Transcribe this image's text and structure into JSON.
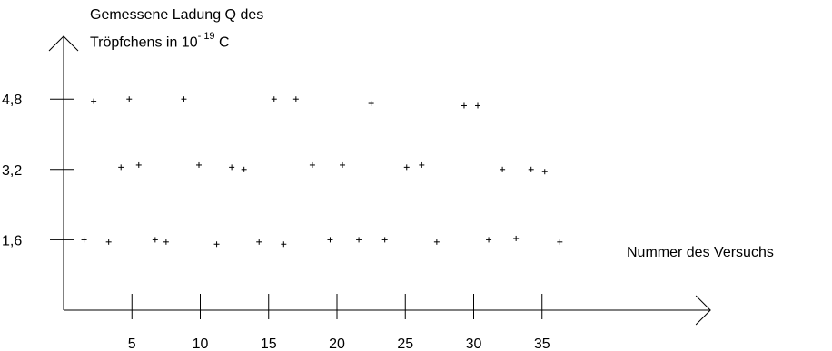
{
  "chart_data": {
    "type": "scatter",
    "title": "",
    "ylabel_line1": "Gemessene Ladung  Q  des",
    "ylabel_line2_prefix": "Tröpfchens  in  10",
    "ylabel_exponent": "- 19",
    "ylabel_unit": "C",
    "xlabel": "Nummer des Versuchs",
    "x_ticks": [
      5,
      10,
      15,
      20,
      25,
      30,
      35
    ],
    "x_tick_labels": [
      "5",
      "10",
      "15",
      "20",
      "25",
      "30",
      "35"
    ],
    "y_ticks": [
      1.6,
      3.2,
      4.8
    ],
    "y_tick_labels": [
      "1,6",
      "3,2",
      "4,8"
    ],
    "xlim": [
      0,
      43
    ],
    "ylim": [
      0,
      6.2
    ],
    "grid": false,
    "marker": "+",
    "series": [
      {
        "x": [
          1.5,
          2.2,
          3.3,
          4.2,
          4.8,
          5.5,
          6.7,
          7.5,
          8.8,
          9.9,
          11.2,
          12.3,
          13.2,
          14.3,
          15.4,
          16.1,
          17.0,
          18.2,
          19.5,
          20.4,
          21.6,
          22.5,
          23.5,
          25.1,
          26.2,
          27.3,
          29.3,
          30.3,
          31.1,
          32.1,
          33.1,
          34.2,
          35.2,
          36.3
        ],
        "y": [
          1.6,
          4.75,
          1.55,
          3.25,
          4.8,
          3.3,
          1.6,
          1.55,
          4.8,
          3.3,
          1.5,
          3.25,
          3.2,
          1.55,
          4.8,
          1.5,
          4.8,
          3.3,
          1.6,
          3.3,
          1.6,
          4.7,
          1.6,
          3.25,
          3.3,
          1.55,
          4.65,
          4.65,
          1.6,
          3.2,
          1.63,
          3.2,
          3.15,
          1.55
        ]
      }
    ]
  }
}
